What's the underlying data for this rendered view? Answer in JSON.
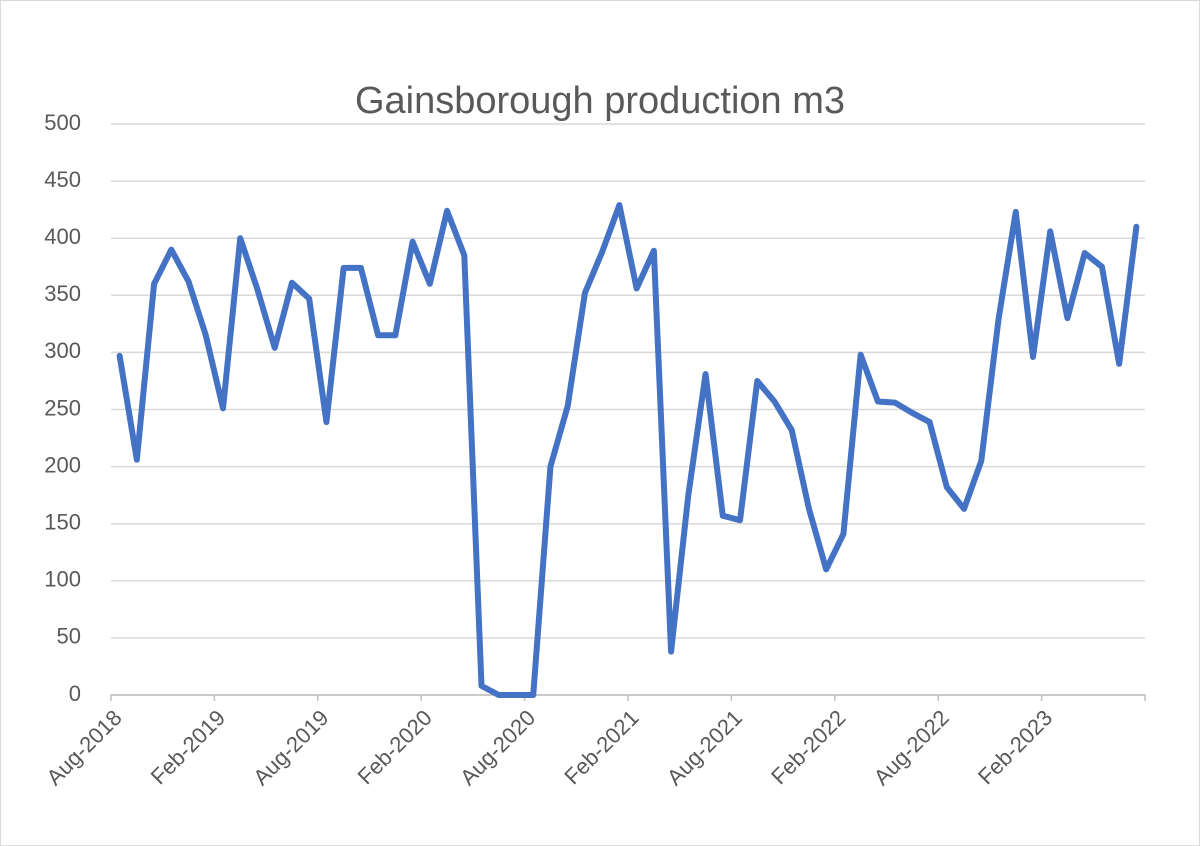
{
  "chart_data": {
    "type": "line",
    "title": "Gainsborough production m3",
    "categories": [
      "Aug-2018",
      null,
      null,
      null,
      null,
      null,
      "Feb-2019",
      null,
      null,
      null,
      null,
      null,
      "Aug-2019",
      null,
      null,
      null,
      null,
      null,
      "Feb-2020",
      null,
      null,
      null,
      null,
      null,
      "Aug-2020",
      null,
      null,
      null,
      null,
      null,
      "Feb-2021",
      null,
      null,
      null,
      null,
      null,
      "Aug-2021",
      null,
      null,
      null,
      null,
      null,
      "Feb-2022",
      null,
      null,
      null,
      null,
      null,
      "Aug-2022",
      null,
      null,
      null,
      null,
      null,
      "Feb-2023",
      null,
      null,
      null,
      null,
      null
    ],
    "series": [
      {
        "name": "Gainsborough production m3",
        "color": "#4472c4",
        "values": [
          297,
          206,
          360,
          390,
          362,
          315,
          251,
          400,
          355,
          304,
          361,
          347,
          239,
          374,
          374,
          315,
          315,
          397,
          360,
          424,
          385,
          8,
          0,
          0,
          0,
          200,
          253,
          352,
          388,
          429,
          356,
          389,
          38,
          175,
          281,
          157,
          153,
          275,
          257,
          232,
          163,
          110,
          141,
          298,
          257,
          256,
          247,
          239,
          182,
          163,
          205,
          329,
          423,
          296,
          406,
          330,
          387,
          375,
          290,
          410
        ]
      }
    ],
    "ylim": [
      0,
      500
    ],
    "yticks": [
      0,
      50,
      100,
      150,
      200,
      250,
      300,
      350,
      400,
      450,
      500
    ],
    "grid": true
  }
}
